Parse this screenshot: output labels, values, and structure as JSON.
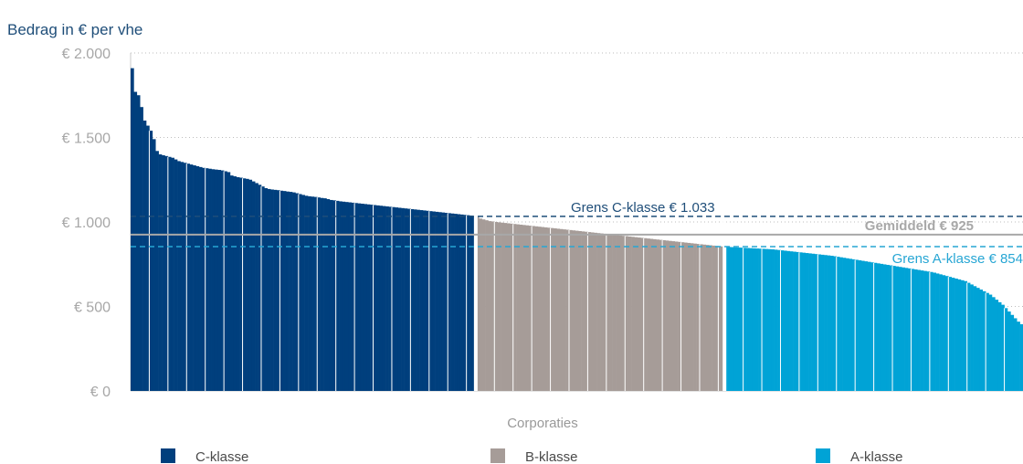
{
  "chart_data": {
    "type": "bar",
    "ylabel": "Bedrag in € per vhe",
    "xlabel": "Corporaties",
    "ylim": [
      0,
      2000
    ],
    "yticks": [
      {
        "value": 0,
        "label": "€ 0"
      },
      {
        "value": 500,
        "label": "€ 500"
      },
      {
        "value": 1000,
        "label": "€ 1.000"
      },
      {
        "value": 1500,
        "label": "€ 1.500"
      },
      {
        "value": 2000,
        "label": "€ 2.000"
      }
    ],
    "grid": "horizontal dotted",
    "colors": {
      "C-klasse": "#003f7d",
      "B-klasse": "#a69c98",
      "A-klasse": "#00a3d6",
      "gemiddeld": "#a8a8a8"
    },
    "reference_lines": [
      {
        "key": "c",
        "label": "Grens C-klasse € 1.033",
        "value": 1033,
        "style": "dashed",
        "color": "#1f4e79"
      },
      {
        "key": "avg",
        "label": "Gemiddeld € 925",
        "value": 925,
        "style": "solid",
        "color": "#a8a8a8"
      },
      {
        "key": "a",
        "label": "Grens A-klasse € 854",
        "value": 854,
        "style": "dashed",
        "color": "#27a6d4"
      }
    ],
    "series": [
      {
        "name": "C-klasse",
        "values": [
          1910,
          1770,
          1750,
          1680,
          1600,
          1570,
          1540,
          1490,
          1420,
          1400,
          1395,
          1390,
          1385,
          1380,
          1370,
          1360,
          1355,
          1350,
          1345,
          1340,
          1335,
          1330,
          1325,
          1320,
          1318,
          1315,
          1312,
          1310,
          1308,
          1305,
          1300,
          1295,
          1275,
          1270,
          1265,
          1262,
          1258,
          1255,
          1250,
          1240,
          1230,
          1220,
          1210,
          1200,
          1195,
          1192,
          1190,
          1188,
          1185,
          1183,
          1180,
          1178,
          1175,
          1170,
          1165,
          1160,
          1155,
          1152,
          1150,
          1148,
          1145,
          1142,
          1140,
          1135,
          1130,
          1128,
          1125,
          1122,
          1120,
          1118,
          1116,
          1114,
          1112,
          1110,
          1108,
          1106,
          1104,
          1102,
          1100,
          1098,
          1096,
          1094,
          1092,
          1090,
          1088,
          1086,
          1084,
          1082,
          1080,
          1078,
          1076,
          1074,
          1072,
          1070,
          1068,
          1066,
          1064,
          1062,
          1060,
          1058,
          1056,
          1054,
          1052,
          1050,
          1048,
          1046,
          1044,
          1042,
          1040,
          1038,
          1035
        ]
      },
      {
        "name": "B-klasse",
        "values": [
          1030,
          1020,
          1015,
          1010,
          1005,
          1003,
          1000,
          998,
          996,
          994,
          992,
          990,
          988,
          986,
          984,
          982,
          980,
          978,
          976,
          974,
          972,
          970,
          968,
          966,
          964,
          962,
          960,
          958,
          956,
          954,
          952,
          950,
          948,
          946,
          944,
          942,
          940,
          938,
          936,
          934,
          932,
          930,
          928,
          926,
          924,
          922,
          920,
          918,
          916,
          914,
          912,
          910,
          908,
          906,
          904,
          902,
          900,
          898,
          896,
          894,
          892,
          890,
          888,
          886,
          884,
          882,
          880,
          878,
          876,
          874,
          872,
          870,
          868,
          866,
          864,
          862,
          860,
          858,
          856,
          855
        ]
      },
      {
        "name": "A-klasse",
        "values": [
          853,
          852,
          851,
          850,
          849,
          848,
          847,
          846,
          845,
          844,
          843,
          842,
          841,
          840,
          839,
          838,
          836,
          834,
          832,
          830,
          828,
          826,
          824,
          822,
          820,
          818,
          816,
          814,
          812,
          810,
          808,
          806,
          804,
          802,
          800,
          797,
          794,
          791,
          788,
          785,
          782,
          779,
          776,
          773,
          770,
          767,
          764,
          761,
          758,
          755,
          752,
          749,
          746,
          743,
          740,
          737,
          734,
          731,
          728,
          725,
          722,
          719,
          716,
          713,
          710,
          707,
          704,
          700,
          695,
          690,
          685,
          680,
          675,
          670,
          665,
          660,
          655,
          650,
          640,
          630,
          620,
          610,
          600,
          590,
          580,
          570,
          555,
          540,
          525,
          510,
          490,
          470,
          450,
          430,
          410,
          395
        ]
      }
    ]
  }
}
